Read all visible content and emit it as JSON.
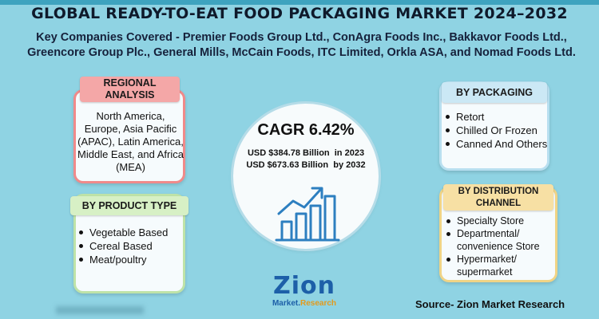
{
  "title": "GLOBAL READY-TO-EAT FOOD PACKAGING MARKET 2024–2032",
  "subtitle": "Key Companies Covered - Premier Foods Group Ltd., ConAgra Foods Inc., Bakkavor Foods Ltd., Greencore Group Plc., General Mills, McCain Foods, ITC Limited, Orkla ASA, and Nomad Foods Ltd.",
  "regional": {
    "label": "REGIONAL ANALYSIS",
    "text": "North America, Europe, Asia Pacific (APAC), Latin America, Middle East, and Africa (MEA)"
  },
  "product_type": {
    "label": "BY PRODUCT TYPE",
    "items": [
      "Vegetable Based",
      "Cereal Based",
      "Meat/poultry"
    ]
  },
  "packaging": {
    "label": "BY PACKAGING",
    "items": [
      "Retort",
      "Chilled Or Frozen",
      "Canned And Others"
    ]
  },
  "distribution": {
    "label": "BY DISTRIBUTION CHANNEL",
    "items": [
      "Specialty Store",
      "Departmental/ convenience Store",
      "Hypermarket/ supermarket"
    ]
  },
  "center": {
    "cagr": "CAGR 6.42%",
    "value_2023": "USD $384.78 Billion  in 2023",
    "value_2032": "USD $673.63 Billion  by 2032"
  },
  "logo": {
    "main": "Zion",
    "sub_a": "Market.",
    "sub_b": "Research"
  },
  "source": "Source- Zion Market Research",
  "colors": {
    "background": "#8fd3e3",
    "regional": "#f08a8a",
    "product": "#bfe3a8",
    "packaging": "#b8dff0",
    "distribution": "#f0d486",
    "icon": "#2d7fc0"
  },
  "icons": [
    "growth-chart-icon"
  ]
}
